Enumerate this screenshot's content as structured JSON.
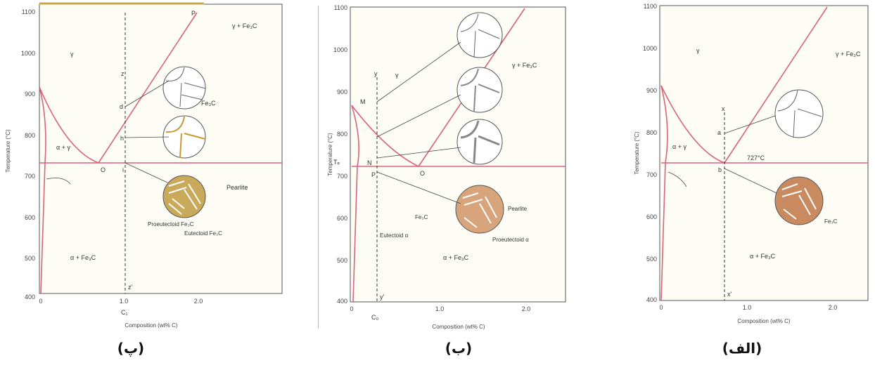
{
  "colors": {
    "line": "#d9637c",
    "axis": "#555555",
    "grain": "#7a6a5a",
    "pearlite_gold": "#c9a95a",
    "pearlite_brown": "#c98a60"
  },
  "axes": {
    "yticks": [
      "1100",
      "1000",
      "900",
      "800",
      "700",
      "600",
      "500",
      "400"
    ],
    "xticks": [
      "0",
      "1.0",
      "2.0"
    ],
    "ylabel": "Temperature (°C)",
    "xlabel": "Composition (wt% C)"
  },
  "panels": [
    {
      "caption": "(پ)",
      "labels": {
        "gamma": "γ",
        "gamma_fe3c": "γ + Fe₃C",
        "alpha_gamma": "α + γ",
        "alpha_fe3c": "α + Fe₃C",
        "point_O": "O",
        "point_z": "z",
        "point_zp": "z'",
        "point_d": "d",
        "point_h": "h",
        "point_i": "i",
        "point_P": "P",
        "point_j": "j",
        "c1": "C₁",
        "fe3c": "Fe₃C",
        "pearlite": "Pearlite",
        "proeutectoid": "Proeutectoid Fe₃C",
        "eutectoid": "Eutectoid Fe₃C",
        "x_one": "1.0"
      },
      "grain_labels": [
        "γ",
        "γ",
        "γ",
        "γ"
      ],
      "chart_data": {
        "type": "phase-diagram",
        "xlim": [
          0,
          2.5
        ],
        "ylim": [
          400,
          1100
        ],
        "eutectoid_temp": 727,
        "eutectoid_comp": 0.76,
        "composition_line": 1.1
      }
    },
    {
      "caption": "(ب)",
      "labels": {
        "gamma": "γ",
        "gamma_fe3c": "γ + Fe₃C",
        "alpha_fe3c": "α + Fe₃C",
        "point_M": "M",
        "point_N": "N",
        "point_O": "O",
        "point_P": "P",
        "te": "Tₑ",
        "point_y": "y",
        "point_yp": "y'",
        "c0": "C₀",
        "pearlite": "Pearlite",
        "fe3c": "Fe₃C",
        "eutectoid_a": "Eutectoid α",
        "proeutectoid": "Proeutectoid α"
      },
      "grain_labels": [
        "γ",
        "γ",
        "γ",
        "γ",
        "γ"
      ],
      "chart_data": {
        "type": "phase-diagram",
        "xlim": [
          0,
          2.5
        ],
        "ylim": [
          400,
          1100
        ],
        "eutectoid_temp": 727,
        "eutectoid_comp": 0.76,
        "composition_line": 0.38
      }
    },
    {
      "caption": "(الف)",
      "labels": {
        "gamma": "γ",
        "gamma_fe3c": "γ + Fe₃C",
        "alpha_gamma": "α + γ",
        "alpha_fe3c": "α + Fe₃C",
        "temp727": "727°C",
        "point_x": "x",
        "point_xp": "x'",
        "point_a": "a",
        "point_b": "b",
        "fe3c": "Fe₃C"
      },
      "grain_labels": [
        "γ",
        "γ",
        "γ",
        "γ"
      ],
      "chart_data": {
        "type": "phase-diagram",
        "xlim": [
          0,
          2.5
        ],
        "ylim": [
          400,
          1100
        ],
        "eutectoid_temp": 727,
        "eutectoid_comp": 0.76,
        "composition_line": 0.76
      }
    }
  ]
}
